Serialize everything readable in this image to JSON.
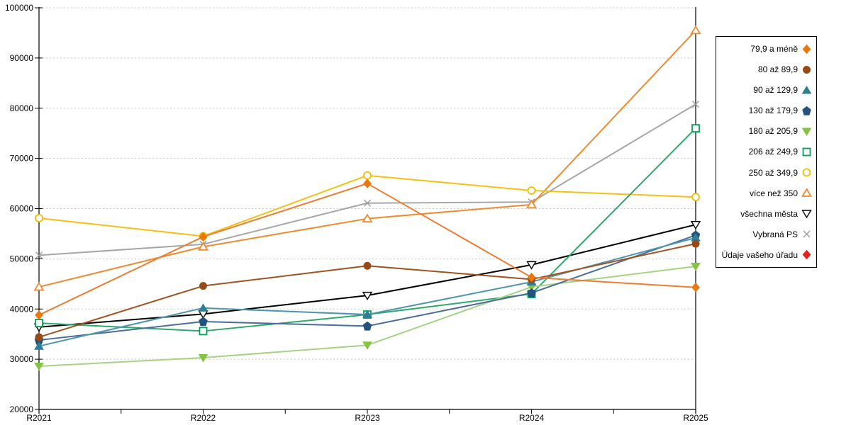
{
  "chart_data": {
    "type": "line",
    "title": "",
    "categories": [
      "R2021",
      "R2022",
      "R2023",
      "R2024",
      "R2025"
    ],
    "y_axis": {
      "min": 20000,
      "max": 100000,
      "step": 10000,
      "tick_labels": [
        "20000",
        "30000",
        "40000",
        "50000",
        "60000",
        "70000",
        "80000",
        "90000",
        "100000"
      ]
    },
    "grid": "horizontal-dashed",
    "legend_position": "right",
    "series": [
      {
        "name": "79,9 a méně",
        "marker": "diamond",
        "filled": true,
        "color": "#E8790E",
        "line_color": "#ED7D31",
        "values": [
          38800,
          54400,
          65000,
          46300,
          44300
        ]
      },
      {
        "name": "80 až 89,9",
        "marker": "circle",
        "filled": true,
        "color": "#964A17",
        "line_color": "#A05321",
        "values": [
          34400,
          44600,
          48600,
          45900,
          53000
        ]
      },
      {
        "name": "90 až 129,9",
        "marker": "triangle-up",
        "filled": true,
        "color": "#2D7F97",
        "line_color": "#4E95AB",
        "values": [
          32600,
          40200,
          38900,
          45400,
          54200
        ]
      },
      {
        "name": "130 až 179,9",
        "marker": "pentagon",
        "filled": true,
        "color": "#25517E",
        "line_color": "#4A6E99",
        "values": [
          33800,
          37500,
          36600,
          43200,
          54700
        ]
      },
      {
        "name": "180 až 205,9",
        "marker": "triangle-down",
        "filled": true,
        "color": "#84C441",
        "line_color": "#A6D283",
        "values": [
          28600,
          30300,
          32800,
          44400,
          48500
        ]
      },
      {
        "name": "206 až 249,9",
        "marker": "square",
        "filled": false,
        "color": "#00A159",
        "line_color": "#2EA86B",
        "values": [
          37200,
          35600,
          38900,
          43000,
          76000
        ]
      },
      {
        "name": "250 až 349,9",
        "marker": "circle",
        "filled": false,
        "color": "#F0BC00",
        "line_color": "#F2C213",
        "values": [
          58100,
          54500,
          66600,
          63600,
          62300
        ]
      },
      {
        "name": "více než 350",
        "marker": "triangle-up",
        "filled": false,
        "color": "#F08A2E",
        "line_color": "#F08A2E",
        "values": [
          44400,
          52400,
          58000,
          60800,
          95500
        ]
      },
      {
        "name": "všechna města",
        "marker": "triangle-down",
        "filled": false,
        "color": "#000000",
        "line_color": "#000000",
        "values": [
          36400,
          39000,
          42700,
          48800,
          56800
        ]
      },
      {
        "name": "Vybraná PS",
        "marker": "x",
        "filled": false,
        "color": "#9C9C9C",
        "line_color": "#A6A6A6",
        "values": [
          50700,
          52900,
          61100,
          61300,
          80800
        ]
      },
      {
        "name": "Údaje vašeho úřadu",
        "marker": "diamond",
        "filled": true,
        "color": "#E3201B",
        "line_color": "#E3201B",
        "values": []
      }
    ]
  }
}
